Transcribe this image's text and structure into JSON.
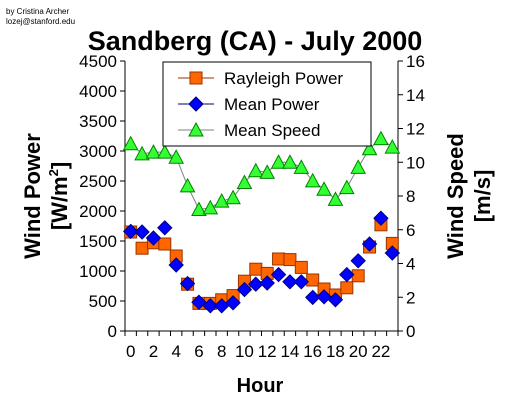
{
  "credit": {
    "line1": "by Cristina Archer",
    "line2": "lozej@stanford.edu"
  },
  "chart_data": {
    "type": "scatter",
    "title": "Sandberg (CA) - July 2000",
    "xlabel": "Hour",
    "ylabel_left_line1": "Wind Power",
    "ylabel_left_line2": "[W/m",
    "ylabel_left_sup": "2",
    "ylabel_left_close": "]",
    "ylabel_right_line1": "Wind Speed",
    "ylabel_right_line2": "[m/s]",
    "xlim": [
      -0.5,
      23.5
    ],
    "ylim_left": [
      0,
      4500
    ],
    "ylim_right": [
      0,
      16
    ],
    "x_ticks": [
      0,
      2,
      4,
      6,
      8,
      10,
      12,
      14,
      16,
      18,
      20,
      22
    ],
    "y_left_ticks": [
      0,
      500,
      1000,
      1500,
      2000,
      2500,
      3000,
      3500,
      4000,
      4500
    ],
    "y_right_ticks": [
      0,
      2,
      4,
      6,
      8,
      10,
      12,
      14,
      16
    ],
    "grid": false,
    "legend_position": "top-center",
    "x": [
      0,
      1,
      2,
      3,
      4,
      5,
      6,
      7,
      8,
      9,
      10,
      11,
      12,
      13,
      14,
      15,
      16,
      17,
      18,
      19,
      20,
      21,
      22,
      23
    ],
    "series": [
      {
        "name": "Rayleigh Power",
        "axis": "left",
        "marker": "square",
        "color": "#ff6600",
        "stroke": "#993300",
        "values": [
          1650,
          1380,
          1470,
          1450,
          1250,
          780,
          460,
          460,
          520,
          590,
          830,
          1030,
          960,
          1200,
          1190,
          1060,
          850,
          700,
          600,
          720,
          920,
          1400,
          1770,
          1460
        ]
      },
      {
        "name": "Mean Power",
        "axis": "left",
        "marker": "diamond",
        "color": "#0000ff",
        "stroke": "#000080",
        "values": [
          1660,
          1650,
          1550,
          1720,
          1100,
          790,
          480,
          420,
          420,
          470,
          690,
          780,
          800,
          940,
          820,
          820,
          560,
          570,
          520,
          940,
          1170,
          1450,
          1880,
          1300
        ]
      },
      {
        "name": "Mean Speed",
        "axis": "right",
        "marker": "triangle",
        "color": "#33ff33",
        "stroke": "#008000",
        "line_color": "#808080",
        "values": [
          11.1,
          10.5,
          10.6,
          10.6,
          10.3,
          8.6,
          7.2,
          7.3,
          7.7,
          7.9,
          8.8,
          9.5,
          9.4,
          10.0,
          10.0,
          9.7,
          8.9,
          8.4,
          7.8,
          8.5,
          9.7,
          10.8,
          11.4,
          10.9
        ]
      }
    ]
  }
}
